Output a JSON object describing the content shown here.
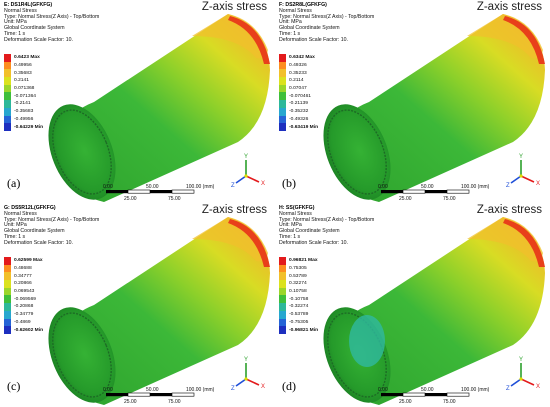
{
  "z_title": "Z-axis stress",
  "scale": {
    "l0": "0.00",
    "l50": "50.00",
    "l100": "100.00 (mm)",
    "l25": "25.00",
    "l75": "75.00"
  },
  "panels": [
    {
      "tag": "(a)",
      "lines": [
        "E: DS1R4L(GFKFG)",
        "Normal Stress",
        "Type: Normal Stress(Z Axis) - Top/Bottom",
        "Unit: MPa",
        "Global Coordinate System",
        "Time: 1 s",
        "Deformation Scale Factor: 10."
      ],
      "legend": [
        "0.6423 Max",
        "0.49956",
        "0.35683",
        "0.2141",
        "0.071368",
        "-0.071364",
        "-0.2141",
        "-0.35683",
        "-0.49956",
        "-0.64229 Min"
      ]
    },
    {
      "tag": "(b)",
      "lines": [
        "F: DS2R8L(GFKFG)",
        "Normal Stress",
        "Type: Normal Stress(Z Axis) - Top/Bottom",
        "Unit: MPa",
        "Global Coordinate System",
        "Time: 1 s",
        "Deformation Scale Factor: 10."
      ],
      "legend": [
        "0.6342 Max",
        "0.49326",
        "0.35233",
        "0.2114",
        "0.07047",
        "-0.070461",
        "-0.21139",
        "-0.35232",
        "-0.49326",
        "-0.63419 Min"
      ]
    },
    {
      "tag": "(c)",
      "lines": [
        "G: DS5R12L(GFKFG)",
        "Normal Stress",
        "Type: Normal Stress(Z Axis) - Top/Bottom",
        "Unit: MPa",
        "Global Coordinate System",
        "Time: 1 s",
        "Deformation Scale Factor: 10."
      ],
      "legend": [
        "0.62599 Max",
        "0.48688",
        "0.34777",
        "0.20866",
        "0.069543",
        "-0.069569",
        "-0.20868",
        "-0.34779",
        "-0.4869",
        "-0.62602 Min"
      ]
    },
    {
      "tag": "(d)",
      "lines": [
        "H: SS(GFKFG)",
        "Normal Stress",
        "Type: Normal Stress(Z Axis) - Top/Bottom",
        "Unit: MPa",
        "Global Coordinate System",
        "Time: 1 s",
        "Deformation Scale Factor: 10."
      ],
      "legend": [
        "0.96821 Max",
        "0.75305",
        "0.53789",
        "0.32274",
        "0.10758",
        "-0.10758",
        "-0.32274",
        "-0.53789",
        "-0.75305",
        "-0.96821 Min"
      ]
    }
  ],
  "axis_labels": {
    "y": "Y",
    "z": "Z",
    "x": "X"
  },
  "legend_colors": [
    "#e31a1c",
    "#fd8d1f",
    "#f2c02a",
    "#dbe21e",
    "#9bd62a",
    "#3fbf3a",
    "#2db89a",
    "#27a7cf",
    "#2564d6",
    "#1d2fbf"
  ]
}
